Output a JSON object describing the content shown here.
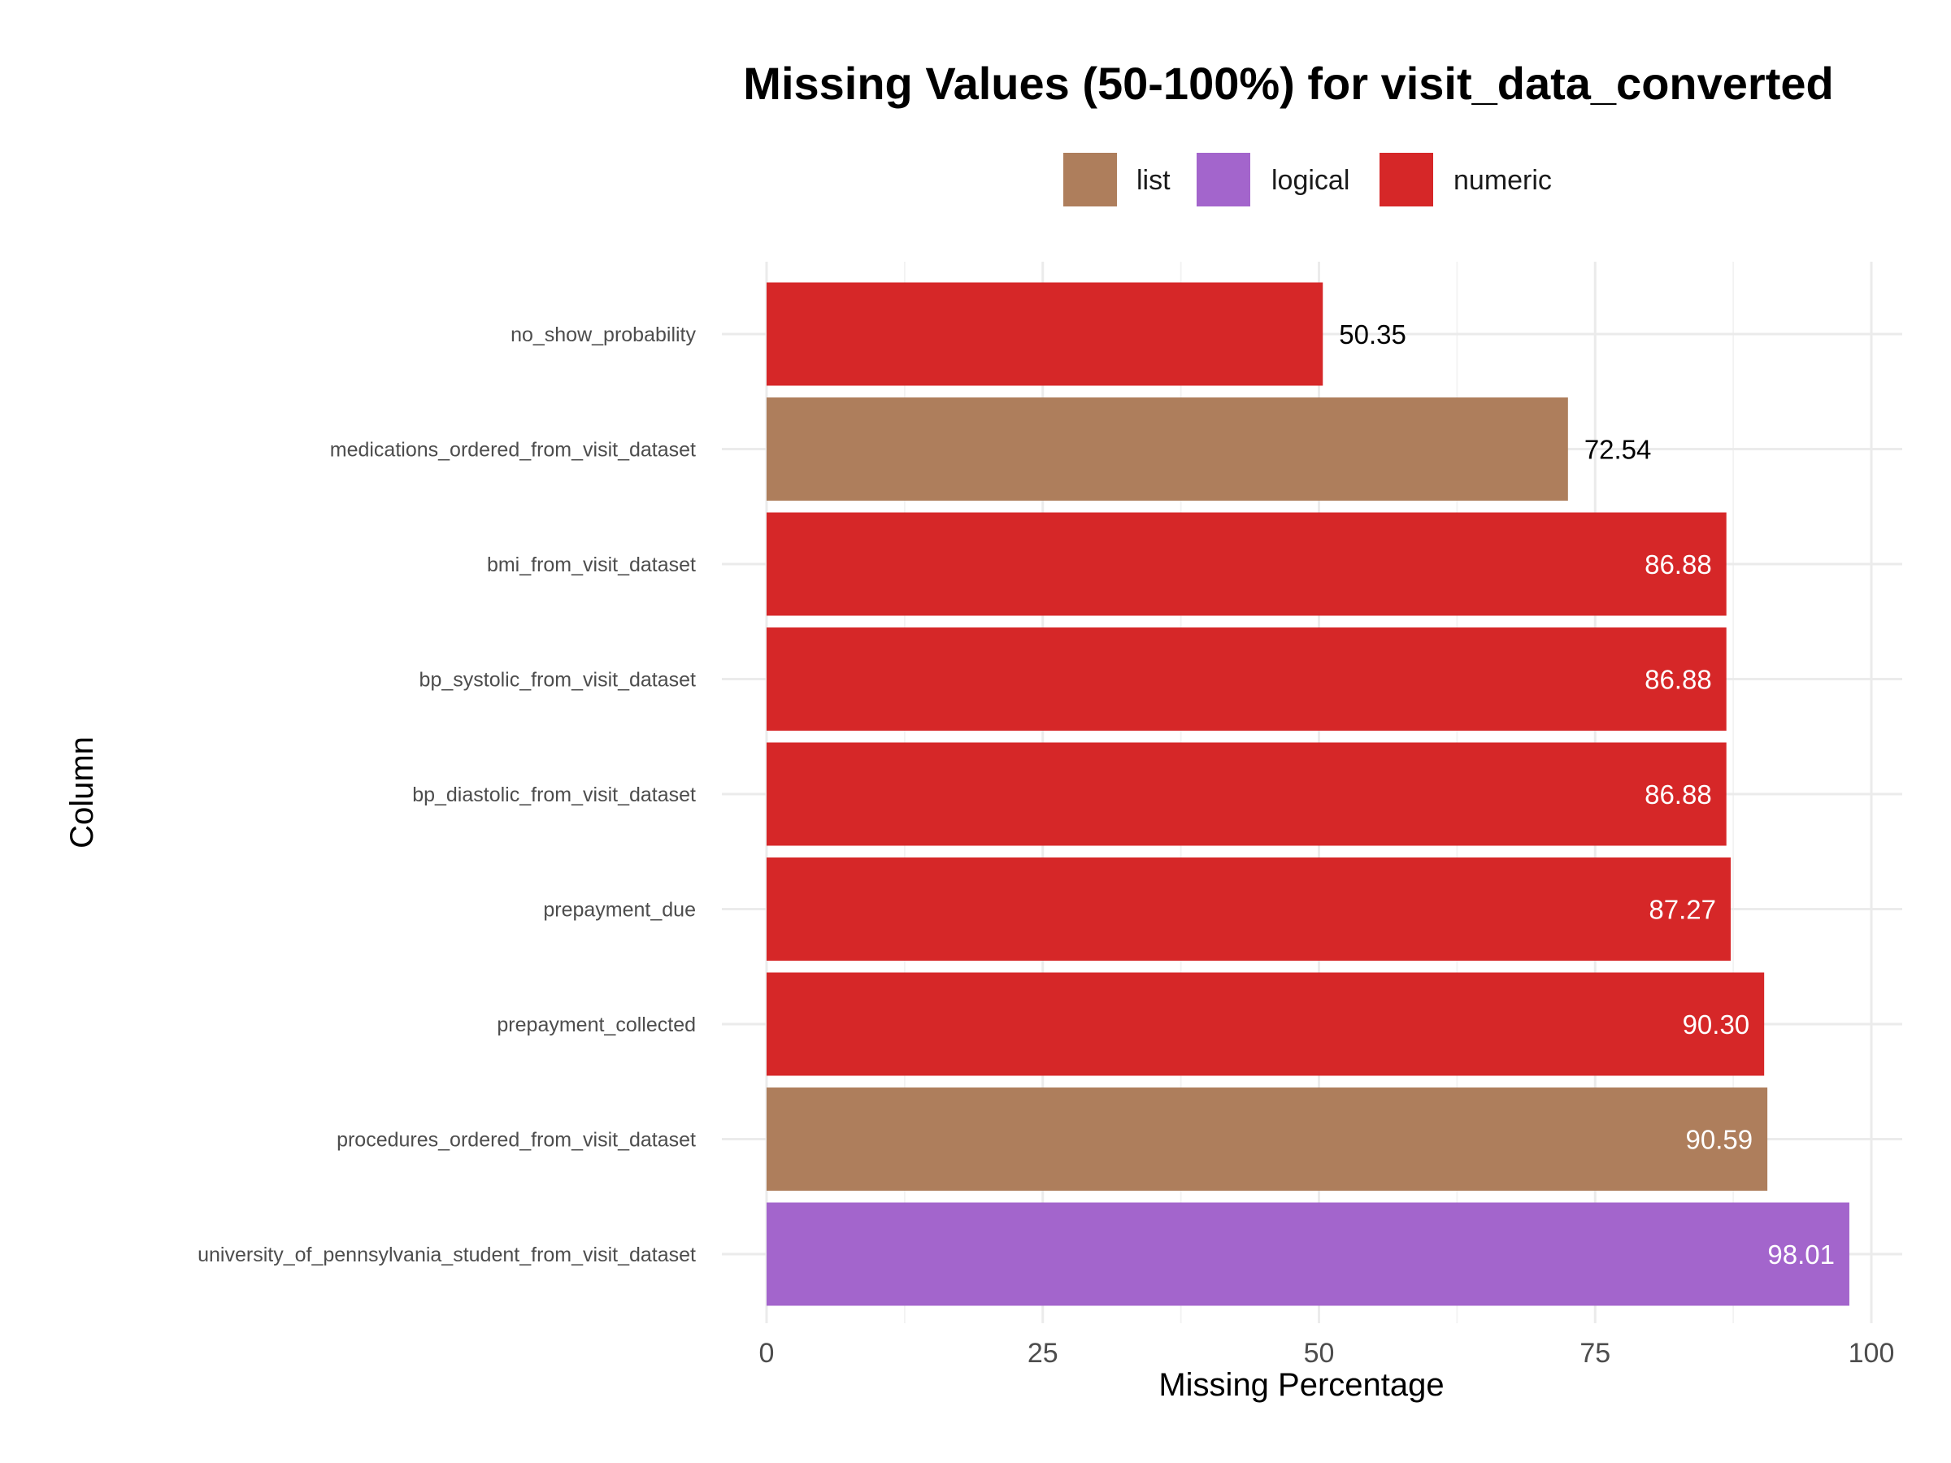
{
  "chart_data": {
    "type": "bar",
    "orientation": "horizontal",
    "title": "Missing Values (50-100%) for visit_data_converted",
    "xlabel": "Missing Percentage",
    "ylabel": "Column",
    "xlim": [
      0,
      100
    ],
    "x_ticks": [
      0,
      25,
      50,
      75,
      100
    ],
    "grid": true,
    "legend_position": "top",
    "legend": [
      {
        "name": "list",
        "color": "#AE7E5C"
      },
      {
        "name": "logical",
        "color": "#A365CC"
      },
      {
        "name": "numeric",
        "color": "#D62728"
      }
    ],
    "categories": [
      "no_show_probability",
      "medications_ordered_from_visit_dataset",
      "bmi_from_visit_dataset",
      "bp_systolic_from_visit_dataset",
      "bp_diastolic_from_visit_dataset",
      "prepayment_due",
      "prepayment_collected",
      "procedures_ordered_from_visit_dataset",
      "university_of_pennsylvania_student_from_visit_dataset"
    ],
    "values": [
      50.35,
      72.54,
      86.88,
      86.88,
      86.88,
      87.27,
      90.3,
      90.59,
      98.01
    ],
    "value_labels": [
      "50.35",
      "72.54",
      "86.88",
      "86.88",
      "86.88",
      "87.27",
      "90.30",
      "90.59",
      "98.01"
    ],
    "types": [
      "numeric",
      "list",
      "numeric",
      "numeric",
      "numeric",
      "numeric",
      "numeric",
      "list",
      "logical"
    ]
  }
}
